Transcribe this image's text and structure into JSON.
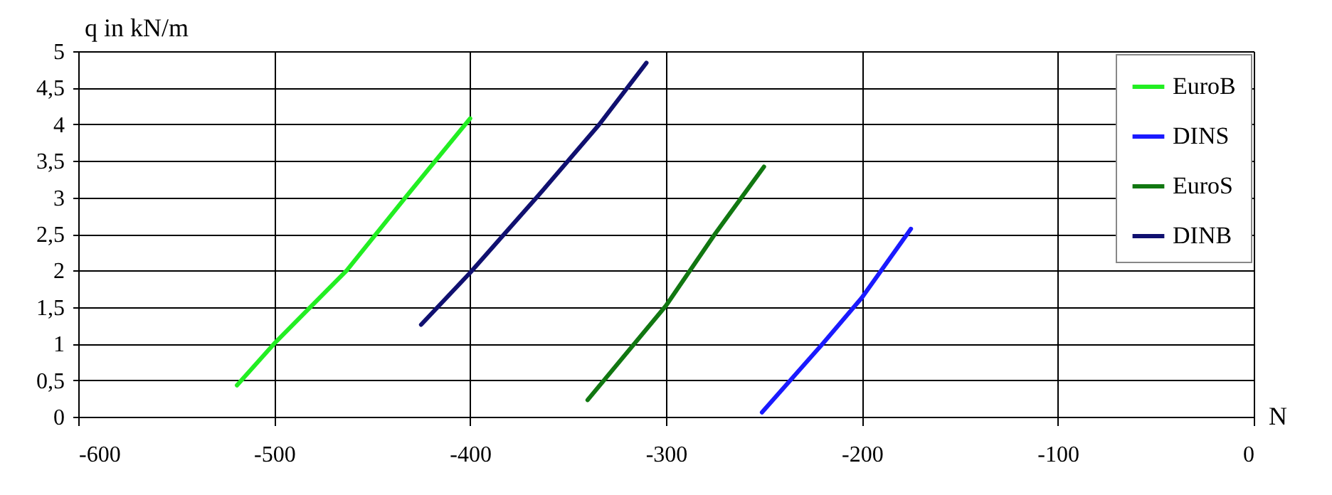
{
  "chart_data": {
    "type": "line",
    "xlabel": "N",
    "ylabel": "q in kN/m",
    "xlim": [
      -600,
      0
    ],
    "xticks": [
      -600,
      -500,
      -400,
      -300,
      -200,
      -100,
      0
    ],
    "ylim": [
      0,
      5
    ],
    "yticks": [
      0,
      {
        "value": 0.5,
        "label": "0,5"
      },
      1,
      {
        "value": 1.5,
        "label": "1,5"
      },
      2,
      {
        "value": 2.5,
        "label": "2,5"
      },
      3,
      {
        "value": 3.5,
        "label": "3,5"
      },
      4,
      {
        "value": 4.5,
        "label": "4,5"
      },
      5
    ],
    "grid": true,
    "legend": "top right",
    "line_style": "solid",
    "marker": "none",
    "series": [
      {
        "name": "EuroB",
        "color": "#22ee22",
        "x": [
          -519,
          -500,
          -463,
          -433,
          -400
        ],
        "values": [
          0.43,
          1.0,
          2.0,
          3.0,
          4.08
        ]
      },
      {
        "name": "DINS",
        "color": "#1a1aff",
        "x": [
          -251,
          -220,
          -200,
          -175
        ],
        "values": [
          0.06,
          1.0,
          1.63,
          2.57
        ]
      },
      {
        "name": "EuroS",
        "color": "#117711",
        "x": [
          -340,
          -300,
          -275,
          -250
        ],
        "values": [
          0.23,
          1.52,
          2.5,
          3.42
        ]
      },
      {
        "name": "DINB",
        "color": "#101070",
        "x": [
          -425,
          -400,
          -366,
          -334,
          -310
        ],
        "values": [
          1.26,
          1.97,
          3.0,
          4.0,
          4.84
        ]
      }
    ]
  }
}
